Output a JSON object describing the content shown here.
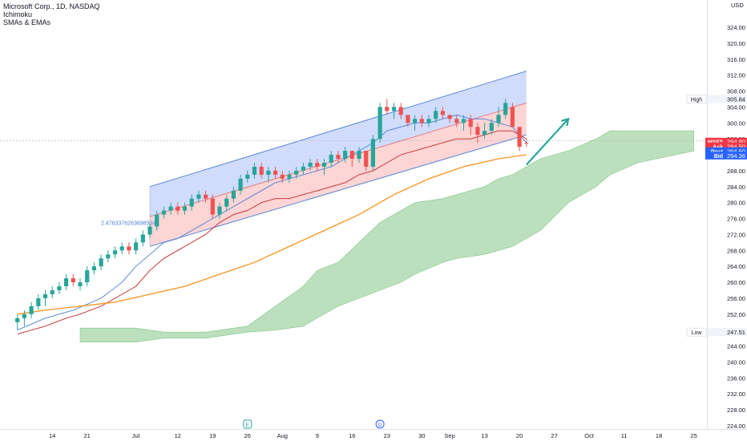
{
  "legend": {
    "symbol_line": "Microsoft Corp., 1D, NASDAQ",
    "indicator1": "Ichimoku",
    "indicator2": "SMAs & EMAs"
  },
  "chart_data": {
    "type": "candlestick",
    "title": "Microsoft Corp., 1D, NASDAQ",
    "currency": "USD",
    "ylim": [
      222,
      326
    ],
    "y_ticks": [
      224.0,
      228.0,
      232.0,
      236.0,
      240.0,
      244.0,
      248.0,
      252.0,
      256.0,
      260.0,
      264.0,
      268.0,
      272.0,
      276.0,
      280.0,
      284.0,
      288.0,
      292.0,
      296.0,
      300.0,
      304.0,
      308.0,
      312.0,
      316.0,
      320.0,
      324.0
    ],
    "x_ticks": [
      {
        "i": -4,
        "label": "14"
      },
      {
        "i": 1,
        "label": "21"
      },
      {
        "i": 8,
        "label": "Jul"
      },
      {
        "i": 14,
        "label": "12"
      },
      {
        "i": 19,
        "label": "19"
      },
      {
        "i": 24,
        "label": "26"
      },
      {
        "i": 29,
        "label": "Aug"
      },
      {
        "i": 34,
        "label": "9"
      },
      {
        "i": 39,
        "label": "16"
      },
      {
        "i": 44,
        "label": "23"
      },
      {
        "i": 49,
        "label": "30"
      },
      {
        "i": 53,
        "label": "Sep"
      },
      {
        "i": 58,
        "label": "13"
      },
      {
        "i": 63,
        "label": "20"
      },
      {
        "i": 68,
        "label": "27"
      },
      {
        "i": 73,
        "label": "Oct"
      },
      {
        "i": 78,
        "label": "11"
      },
      {
        "i": 83,
        "label": "18"
      },
      {
        "i": 88,
        "label": "25"
      }
    ],
    "candles": [
      [
        -9,
        250,
        252,
        248,
        251
      ],
      [
        -8,
        251,
        253,
        249,
        252
      ],
      [
        -7,
        252,
        255,
        251,
        254
      ],
      [
        -6,
        254,
        257,
        253,
        256
      ],
      [
        -5,
        256,
        258,
        254,
        257
      ],
      [
        -4,
        257,
        259,
        256,
        258
      ],
      [
        -3,
        258,
        260,
        257,
        259
      ],
      [
        -2,
        259,
        262,
        258,
        261
      ],
      [
        -1,
        261,
        262,
        259,
        260
      ],
      [
        0,
        259,
        261,
        258,
        260
      ],
      [
        1,
        260,
        264,
        259,
        263
      ],
      [
        2,
        263,
        265,
        262,
        264
      ],
      [
        3,
        264,
        267,
        263,
        266
      ],
      [
        4,
        266,
        268,
        265,
        267
      ],
      [
        5,
        267,
        269,
        266,
        268
      ],
      [
        6,
        268,
        270,
        267,
        269
      ],
      [
        7,
        269,
        270,
        267,
        268
      ],
      [
        8,
        268,
        271,
        267,
        270
      ],
      [
        9,
        270,
        273,
        269,
        272
      ],
      [
        10,
        272,
        275,
        271,
        274
      ],
      [
        11,
        274,
        278,
        273,
        277
      ],
      [
        12,
        277,
        279,
        276,
        278
      ],
      [
        13,
        278,
        280,
        277,
        279
      ],
      [
        14,
        279,
        280,
        277,
        278
      ],
      [
        15,
        278,
        280,
        277,
        279
      ],
      [
        16,
        279,
        282,
        278,
        281
      ],
      [
        17,
        281,
        283,
        280,
        282
      ],
      [
        18,
        282,
        283,
        280,
        281
      ],
      [
        19,
        281,
        282,
        276,
        277
      ],
      [
        20,
        277,
        280,
        276,
        279
      ],
      [
        21,
        279,
        282,
        278,
        281
      ],
      [
        22,
        281,
        284,
        280,
        283
      ],
      [
        23,
        283,
        287,
        282,
        286
      ],
      [
        24,
        286,
        288,
        285,
        287
      ],
      [
        25,
        287,
        290,
        286,
        289
      ],
      [
        26,
        289,
        290,
        286,
        287
      ],
      [
        27,
        287,
        289,
        285,
        288
      ],
      [
        28,
        288,
        289,
        286,
        287
      ],
      [
        29,
        287,
        288,
        285,
        286
      ],
      [
        30,
        286,
        288,
        285,
        287
      ],
      [
        31,
        287,
        289,
        286,
        288
      ],
      [
        32,
        288,
        290,
        287,
        289
      ],
      [
        33,
        289,
        291,
        288,
        290
      ],
      [
        34,
        290,
        291,
        288,
        289
      ],
      [
        35,
        289,
        291,
        287,
        290
      ],
      [
        36,
        290,
        293,
        289,
        292
      ],
      [
        37,
        292,
        293,
        290,
        291
      ],
      [
        38,
        291,
        294,
        290,
        293
      ],
      [
        39,
        293,
        293,
        289,
        291
      ],
      [
        40,
        291,
        294,
        290,
        293
      ],
      [
        41,
        293,
        292,
        288,
        289
      ],
      [
        42,
        289,
        297,
        288,
        296
      ],
      [
        43,
        296,
        305,
        295,
        304
      ],
      [
        44,
        304,
        306,
        302,
        303
      ],
      [
        45,
        303,
        305,
        301,
        304
      ],
      [
        46,
        304,
        305,
        301,
        302
      ],
      [
        47,
        302,
        302,
        299,
        300
      ],
      [
        48,
        300,
        302,
        298,
        301
      ],
      [
        49,
        301,
        302,
        299,
        300
      ],
      [
        50,
        300,
        302,
        299,
        301
      ],
      [
        51,
        301,
        304,
        300,
        303
      ],
      [
        52,
        303,
        304,
        301,
        302
      ],
      [
        53,
        302,
        302,
        300,
        301
      ],
      [
        54,
        301,
        302,
        299,
        300
      ],
      [
        55,
        300,
        302,
        298,
        301
      ],
      [
        56,
        301,
        302,
        297,
        299
      ],
      [
        57,
        299,
        300,
        295,
        297
      ],
      [
        58,
        297,
        300,
        296,
        298
      ],
      [
        59,
        298,
        301,
        297,
        300
      ],
      [
        60,
        300,
        304,
        299,
        302
      ],
      [
        61,
        302,
        306,
        301,
        305
      ],
      [
        62,
        304,
        305,
        299,
        299
      ],
      [
        63,
        299,
        298,
        293,
        294
      ],
      [
        64,
        295,
        296,
        294,
        294.8
      ]
    ],
    "lines": [
      {
        "name": "tenkan",
        "color": "#4a7fd6",
        "points": [
          [
            -9,
            248
          ],
          [
            -5,
            251
          ],
          [
            -1,
            253
          ],
          [
            3,
            256
          ],
          [
            6,
            260
          ],
          [
            8,
            264
          ],
          [
            10,
            267
          ],
          [
            12,
            270
          ],
          [
            14,
            271
          ],
          [
            16,
            273
          ],
          [
            18,
            275
          ],
          [
            20,
            277
          ],
          [
            22,
            279
          ],
          [
            24,
            281
          ],
          [
            26,
            283
          ],
          [
            28,
            285
          ],
          [
            30,
            286
          ],
          [
            32,
            287
          ],
          [
            34,
            288
          ],
          [
            36,
            289
          ],
          [
            38,
            291
          ],
          [
            40,
            293
          ],
          [
            42,
            295
          ],
          [
            44,
            298
          ],
          [
            46,
            299
          ],
          [
            48,
            300
          ],
          [
            50,
            300
          ],
          [
            52,
            301
          ],
          [
            54,
            302
          ],
          [
            56,
            301
          ],
          [
            58,
            301
          ],
          [
            60,
            300
          ],
          [
            62,
            299
          ],
          [
            64,
            295
          ]
        ]
      },
      {
        "name": "kijun",
        "color": "#c62828",
        "points": [
          [
            -9,
            247
          ],
          [
            -5,
            249
          ],
          [
            -2,
            251
          ],
          [
            0,
            252
          ],
          [
            3,
            254
          ],
          [
            6,
            257
          ],
          [
            8,
            259
          ],
          [
            10,
            263
          ],
          [
            12,
            266
          ],
          [
            14,
            268
          ],
          [
            16,
            270
          ],
          [
            18,
            272
          ],
          [
            20,
            275
          ],
          [
            22,
            277
          ],
          [
            24,
            278
          ],
          [
            26,
            280
          ],
          [
            28,
            281
          ],
          [
            30,
            281
          ],
          [
            32,
            282
          ],
          [
            34,
            283
          ],
          [
            36,
            284
          ],
          [
            38,
            285
          ],
          [
            40,
            287
          ],
          [
            42,
            288
          ],
          [
            44,
            290
          ],
          [
            46,
            292
          ],
          [
            48,
            293
          ],
          [
            50,
            294
          ],
          [
            52,
            295
          ],
          [
            54,
            296
          ],
          [
            56,
            296
          ],
          [
            58,
            297
          ],
          [
            60,
            298
          ],
          [
            62,
            298
          ],
          [
            64,
            296
          ]
        ]
      },
      {
        "name": "sma",
        "color": "#f7931a",
        "points": [
          [
            -9,
            252
          ],
          [
            -5,
            253
          ],
          [
            0,
            254
          ],
          [
            5,
            255
          ],
          [
            10,
            257
          ],
          [
            15,
            259
          ],
          [
            20,
            262
          ],
          [
            25,
            265
          ],
          [
            30,
            269
          ],
          [
            35,
            273
          ],
          [
            40,
            277
          ],
          [
            45,
            282
          ],
          [
            50,
            286
          ],
          [
            55,
            289
          ],
          [
            60,
            291
          ],
          [
            64,
            292
          ]
        ]
      }
    ],
    "cloud": {
      "upper": [
        [
          0,
          248.5
        ],
        [
          8,
          248.5
        ],
        [
          12,
          247.5
        ],
        [
          18,
          247.5
        ],
        [
          24,
          249
        ],
        [
          28,
          254
        ],
        [
          32,
          259
        ],
        [
          34,
          263
        ],
        [
          37,
          265
        ],
        [
          40,
          270
        ],
        [
          43,
          275
        ],
        [
          46,
          278
        ],
        [
          48,
          280
        ],
        [
          52,
          281
        ],
        [
          54,
          282
        ],
        [
          58,
          284
        ],
        [
          60,
          286
        ],
        [
          62,
          287
        ],
        [
          66,
          291
        ],
        [
          70,
          293
        ],
        [
          74,
          296
        ],
        [
          76,
          298
        ],
        [
          80,
          298
        ],
        [
          88,
          298
        ]
      ],
      "lower": [
        [
          0,
          245
        ],
        [
          8,
          245
        ],
        [
          12,
          246
        ],
        [
          18,
          246
        ],
        [
          24,
          247.5
        ],
        [
          28,
          248
        ],
        [
          32,
          249
        ],
        [
          34,
          251
        ],
        [
          37,
          254
        ],
        [
          40,
          256
        ],
        [
          43,
          258
        ],
        [
          46,
          260
        ],
        [
          48,
          262
        ],
        [
          52,
          265
        ],
        [
          54,
          266
        ],
        [
          58,
          267
        ],
        [
          60,
          268
        ],
        [
          62,
          269
        ],
        [
          66,
          273
        ],
        [
          70,
          280
        ],
        [
          74,
          284
        ],
        [
          76,
          287
        ],
        [
          80,
          290
        ],
        [
          88,
          293
        ]
      ]
    },
    "channel": {
      "start_i": 10,
      "end_i": 64,
      "top": [
        284,
        313
      ],
      "mid": [
        276.5,
        305
      ],
      "bottom": [
        269,
        297
      ]
    },
    "long_data_label": "2.4763376263698504",
    "long_data_label_pos": [
      275.0,
      3
    ],
    "arrow": [
      [
        64,
        289.5
      ],
      [
        70,
        301
      ]
    ],
    "current_line": 295.5,
    "event_markers": [
      {
        "i": 24,
        "label": "E"
      },
      {
        "i": 43,
        "label": "D"
      }
    ],
    "price_tags": [
      {
        "label": "High",
        "value": "305.84",
        "price": 306,
        "style": "high"
      },
      {
        "label": "MSFT",
        "value": "294.80",
        "price": 295.3,
        "style": "red"
      },
      {
        "label": "Ask",
        "value": "294.50",
        "price": 294.1,
        "style": "red"
      },
      {
        "label": "Post",
        "value": "294.50",
        "price": 292.9,
        "style": "blue"
      },
      {
        "label": "Bid",
        "value": "294.36",
        "price": 291.8,
        "style": "blue"
      },
      {
        "label": "Low",
        "value": "247.51",
        "price": 247.5,
        "style": "low"
      }
    ]
  }
}
